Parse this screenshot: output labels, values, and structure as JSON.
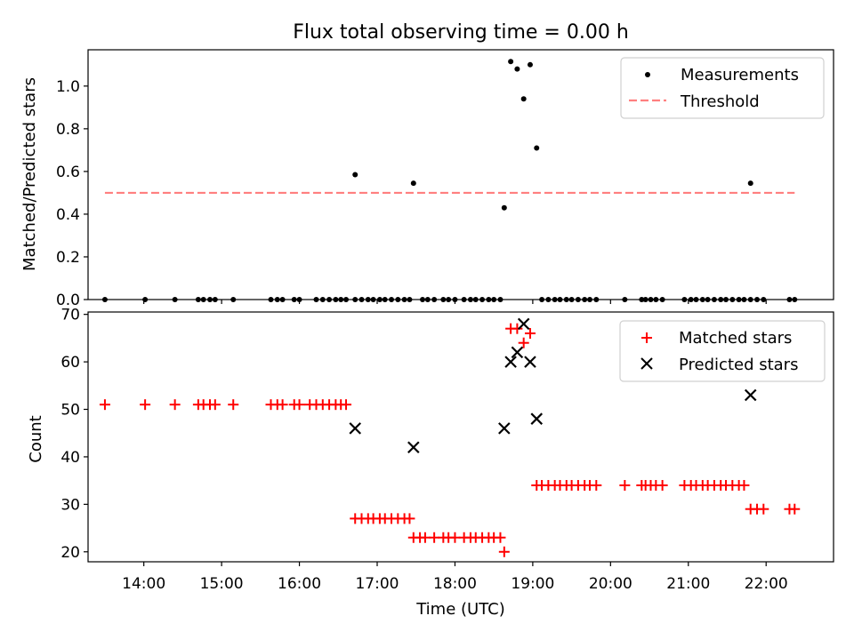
{
  "chart_data": [
    {
      "type": "scatter",
      "title": "Flux total observing time = 0.00 h",
      "xlabel": "",
      "ylabel": "Matched/Predicted stars",
      "xlim": [
        "13:17",
        "22:52"
      ],
      "ylim": [
        0,
        1.17
      ],
      "yticks": [
        "0.0",
        "0.2",
        "0.4",
        "0.6",
        "0.8",
        "1.0"
      ],
      "legend_position": "upper-right",
      "series": [
        {
          "name": "Measurements",
          "color": "#000000",
          "marker": "dot",
          "points": [
            [
              "13:30",
              0
            ],
            [
              "14:01",
              0
            ],
            [
              "14:24",
              0
            ],
            [
              "14:42",
              0
            ],
            [
              "14:46",
              0
            ],
            [
              "14:51",
              0
            ],
            [
              "14:55",
              0
            ],
            [
              "15:09",
              0
            ],
            [
              "15:38",
              0
            ],
            [
              "15:43",
              0
            ],
            [
              "15:47",
              0
            ],
            [
              "15:56",
              0
            ],
            [
              "16:00",
              0
            ],
            [
              "16:13",
              0
            ],
            [
              "16:18",
              0
            ],
            [
              "16:23",
              0
            ],
            [
              "16:28",
              0
            ],
            [
              "16:32",
              0
            ],
            [
              "16:36",
              0
            ],
            [
              "16:43",
              0
            ],
            [
              "16:43",
              0.585
            ],
            [
              "16:48",
              0
            ],
            [
              "16:53",
              0
            ],
            [
              "16:57",
              0
            ],
            [
              "17:02",
              0
            ],
            [
              "17:06",
              0
            ],
            [
              "17:11",
              0
            ],
            [
              "17:16",
              0
            ],
            [
              "17:21",
              0
            ],
            [
              "17:25",
              0
            ],
            [
              "17:28",
              0.545
            ],
            [
              "17:35",
              0
            ],
            [
              "17:39",
              0
            ],
            [
              "17:44",
              0
            ],
            [
              "17:51",
              0
            ],
            [
              "17:55",
              0
            ],
            [
              "18:00",
              0
            ],
            [
              "18:07",
              0
            ],
            [
              "18:12",
              0
            ],
            [
              "18:16",
              0
            ],
            [
              "18:21",
              0
            ],
            [
              "18:26",
              0
            ],
            [
              "18:30",
              0
            ],
            [
              "18:35",
              0
            ],
            [
              "18:38",
              0.43
            ],
            [
              "18:43",
              1.115
            ],
            [
              "18:48",
              1.08
            ],
            [
              "18:53",
              0.94
            ],
            [
              "18:58",
              1.1
            ],
            [
              "19:03",
              0.71
            ],
            [
              "19:07",
              0
            ],
            [
              "19:12",
              0
            ],
            [
              "19:17",
              0
            ],
            [
              "19:21",
              0
            ],
            [
              "19:26",
              0
            ],
            [
              "19:30",
              0
            ],
            [
              "19:35",
              0
            ],
            [
              "19:40",
              0
            ],
            [
              "19:44",
              0
            ],
            [
              "19:49",
              0
            ],
            [
              "20:11",
              0
            ],
            [
              "20:24",
              0
            ],
            [
              "20:27",
              0
            ],
            [
              "20:31",
              0
            ],
            [
              "20:35",
              0
            ],
            [
              "20:40",
              0
            ],
            [
              "20:57",
              0
            ],
            [
              "21:02",
              0
            ],
            [
              "21:06",
              0
            ],
            [
              "21:11",
              0
            ],
            [
              "21:15",
              0
            ],
            [
              "21:20",
              0
            ],
            [
              "21:25",
              0
            ],
            [
              "21:29",
              0
            ],
            [
              "21:34",
              0
            ],
            [
              "21:39",
              0
            ],
            [
              "21:43",
              0
            ],
            [
              "21:48",
              0
            ],
            [
              "21:48",
              0.545
            ],
            [
              "21:53",
              0
            ],
            [
              "21:58",
              0
            ],
            [
              "22:18",
              0
            ],
            [
              "22:22",
              0
            ]
          ]
        },
        {
          "name": "Threshold",
          "color": "#ff7f7f",
          "style": "dashed",
          "points": [
            [
              "13:30",
              0.5
            ],
            [
              "22:22",
              0.5
            ]
          ]
        }
      ]
    },
    {
      "type": "scatter",
      "title": "",
      "xlabel": "Time (UTC)",
      "ylabel": "Count",
      "xlim": [
        "13:17",
        "22:52"
      ],
      "ylim": [
        17.9,
        70.5
      ],
      "yticks": [
        "20",
        "30",
        "40",
        "50",
        "60",
        "70"
      ],
      "xticks": [
        "14:00",
        "15:00",
        "16:00",
        "17:00",
        "18:00",
        "19:00",
        "20:00",
        "21:00",
        "22:00"
      ],
      "legend_position": "upper-right",
      "series": [
        {
          "name": "Matched stars",
          "color": "#ff0000",
          "marker": "plus",
          "points": [
            [
              "13:30",
              51
            ],
            [
              "14:01",
              51
            ],
            [
              "14:24",
              51
            ],
            [
              "14:42",
              51
            ],
            [
              "14:46",
              51
            ],
            [
              "14:51",
              51
            ],
            [
              "14:55",
              51
            ],
            [
              "15:09",
              51
            ],
            [
              "15:38",
              51
            ],
            [
              "15:43",
              51
            ],
            [
              "15:47",
              51
            ],
            [
              "15:56",
              51
            ],
            [
              "16:00",
              51
            ],
            [
              "16:08",
              51
            ],
            [
              "16:13",
              51
            ],
            [
              "16:18",
              51
            ],
            [
              "16:23",
              51
            ],
            [
              "16:28",
              51
            ],
            [
              "16:32",
              51
            ],
            [
              "16:36",
              51
            ],
            [
              "16:43",
              27
            ],
            [
              "16:48",
              27
            ],
            [
              "16:53",
              27
            ],
            [
              "16:57",
              27
            ],
            [
              "17:02",
              27
            ],
            [
              "17:06",
              27
            ],
            [
              "17:11",
              27
            ],
            [
              "17:16",
              27
            ],
            [
              "17:21",
              27
            ],
            [
              "17:25",
              27
            ],
            [
              "17:28",
              23
            ],
            [
              "17:33",
              23
            ],
            [
              "17:37",
              23
            ],
            [
              "17:44",
              23
            ],
            [
              "17:51",
              23
            ],
            [
              "17:55",
              23
            ],
            [
              "18:00",
              23
            ],
            [
              "18:07",
              23
            ],
            [
              "18:12",
              23
            ],
            [
              "18:16",
              23
            ],
            [
              "18:21",
              23
            ],
            [
              "18:26",
              23
            ],
            [
              "18:30",
              23
            ],
            [
              "18:35",
              23
            ],
            [
              "18:38",
              20
            ],
            [
              "18:43",
              67
            ],
            [
              "18:48",
              67
            ],
            [
              "18:53",
              64
            ],
            [
              "18:58",
              66
            ],
            [
              "19:03",
              34
            ],
            [
              "19:07",
              34
            ],
            [
              "19:12",
              34
            ],
            [
              "19:17",
              34
            ],
            [
              "19:21",
              34
            ],
            [
              "19:26",
              34
            ],
            [
              "19:30",
              34
            ],
            [
              "19:35",
              34
            ],
            [
              "19:40",
              34
            ],
            [
              "19:44",
              34
            ],
            [
              "19:49",
              34
            ],
            [
              "20:11",
              34
            ],
            [
              "20:24",
              34
            ],
            [
              "20:27",
              34
            ],
            [
              "20:31",
              34
            ],
            [
              "20:35",
              34
            ],
            [
              "20:40",
              34
            ],
            [
              "20:57",
              34
            ],
            [
              "21:02",
              34
            ],
            [
              "21:06",
              34
            ],
            [
              "21:11",
              34
            ],
            [
              "21:15",
              34
            ],
            [
              "21:20",
              34
            ],
            [
              "21:25",
              34
            ],
            [
              "21:29",
              34
            ],
            [
              "21:34",
              34
            ],
            [
              "21:39",
              34
            ],
            [
              "21:43",
              34
            ],
            [
              "21:48",
              29
            ],
            [
              "21:53",
              29
            ],
            [
              "21:58",
              29
            ],
            [
              "22:18",
              29
            ],
            [
              "22:22",
              29
            ]
          ]
        },
        {
          "name": "Predicted stars",
          "color": "#000000",
          "marker": "x",
          "points": [
            [
              "16:43",
              46
            ],
            [
              "17:28",
              42
            ],
            [
              "18:38",
              46
            ],
            [
              "18:43",
              60
            ],
            [
              "18:48",
              62
            ],
            [
              "18:53",
              68
            ],
            [
              "18:58",
              60
            ],
            [
              "19:03",
              48
            ],
            [
              "21:48",
              53
            ]
          ]
        }
      ]
    }
  ]
}
